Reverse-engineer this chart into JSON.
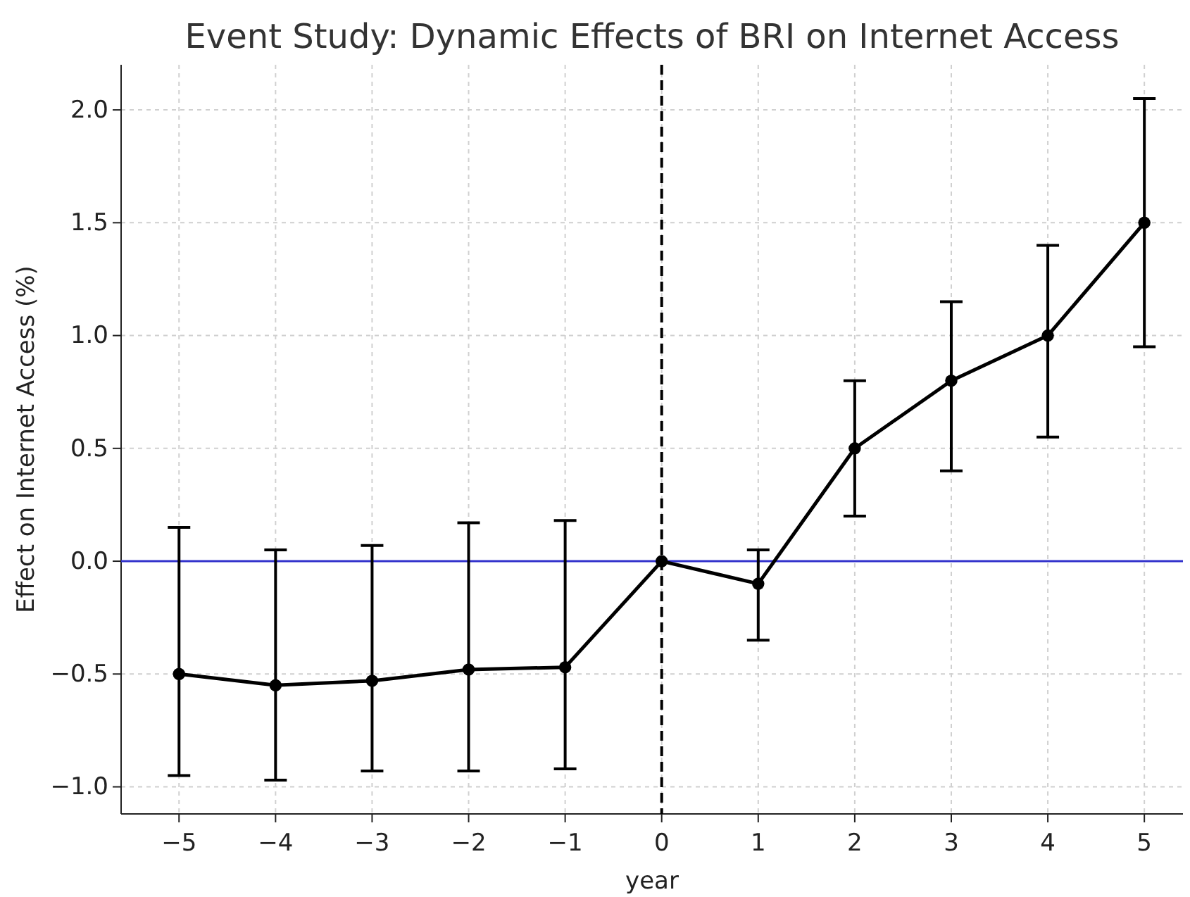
{
  "chart_data": {
    "type": "line",
    "title": "Event Study: Dynamic Effects of BRI on Internet Access",
    "xlabel": "year",
    "ylabel": "Effect on Internet Access (%)",
    "x": [
      -5,
      -4,
      -3,
      -2,
      -1,
      0,
      1,
      2,
      3,
      4,
      5
    ],
    "series": [
      {
        "color": "#000000",
        "values": [
          -0.5,
          -0.55,
          -0.53,
          -0.48,
          -0.47,
          0,
          -0.1,
          0.5,
          0.8,
          1.0,
          1.5
        ],
        "errors": [
          [
            -0.95,
            0.15
          ],
          [
            -0.97,
            0.05
          ],
          [
            -0.93,
            0.07
          ],
          [
            -0.93,
            0.17
          ],
          [
            -0.92,
            0.18
          ],
          null,
          [
            -0.35,
            0.05
          ],
          [
            0.2,
            0.8
          ],
          [
            0.4,
            1.15
          ],
          [
            0.55,
            1.4
          ],
          [
            0.95,
            2.05
          ]
        ]
      }
    ],
    "xlim": [
      -5.6,
      5.4
    ],
    "ylim": [
      -1.12,
      2.2
    ],
    "xticks": [
      -5,
      -4,
      -3,
      -2,
      -1,
      0,
      1,
      2,
      3,
      4,
      5
    ],
    "yticks": [
      {
        "value": -1,
        "label": "−1.0"
      },
      {
        "value": -0.5,
        "label": "−0.5"
      },
      {
        "value": 0,
        "label": "0.0"
      },
      {
        "value": 0.5,
        "label": "0.5"
      },
      {
        "value": 1,
        "label": "1.0"
      },
      {
        "value": 1.5,
        "label": "1.5"
      },
      {
        "value": 2,
        "label": "2.0"
      }
    ],
    "ref_lines": [
      {
        "axis": "y",
        "value": 0,
        "color": "#3333cc",
        "line_style": "solid"
      },
      {
        "axis": "x",
        "value": 0,
        "color": "#000000",
        "line_style": "dashed"
      }
    ],
    "grid": true,
    "marker": "circle",
    "line_style": "solid"
  }
}
